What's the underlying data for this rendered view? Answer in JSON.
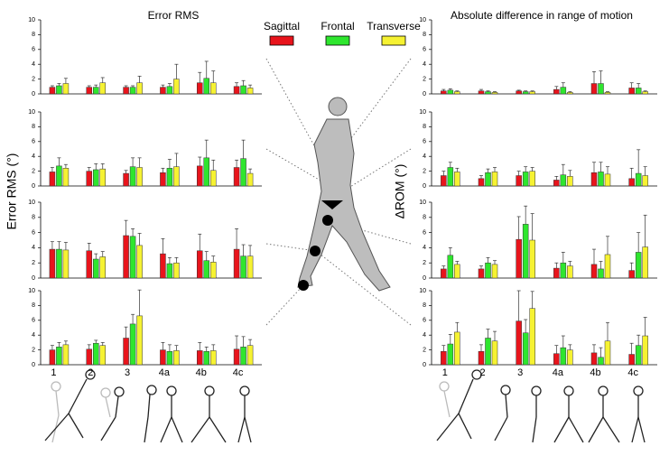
{
  "legend": [
    {
      "name": "Sagittal",
      "color": "#e8141c"
    },
    {
      "name": "Frontal",
      "color": "#2ee62e"
    },
    {
      "name": "Transverse",
      "color": "#f6f232"
    }
  ],
  "chart_data": [
    {
      "type": "bar",
      "title": "Error RMS",
      "ylabel": "Error RMS (°)",
      "ylim": [
        0,
        10
      ],
      "yticks": [
        0,
        2,
        4,
        6,
        8,
        10
      ],
      "series": [
        {
          "color": "#e8141c",
          "values": [
            0.9,
            0.9,
            0.9,
            0.9,
            1.5,
            1.0
          ],
          "errors": [
            0.2,
            0.2,
            0.2,
            0.3,
            1.4,
            0.5
          ]
        },
        {
          "color": "#2ee62e",
          "values": [
            1.1,
            0.9,
            0.9,
            1.0,
            2.1,
            1.1
          ],
          "errors": [
            0.3,
            0.3,
            0.2,
            0.4,
            2.3,
            0.7
          ]
        },
        {
          "color": "#f6f232",
          "values": [
            1.4,
            1.5,
            1.5,
            2.0,
            1.5,
            0.8
          ],
          "errors": [
            0.7,
            0.7,
            0.9,
            2.0,
            1.6,
            0.4
          ]
        }
      ]
    },
    {
      "type": "bar",
      "ylim": [
        0,
        10
      ],
      "yticks": [
        0,
        2,
        4,
        6,
        8,
        10
      ],
      "series": [
        {
          "color": "#e8141c",
          "values": [
            1.9,
            2.0,
            1.7,
            1.8,
            2.7,
            2.5
          ],
          "errors": [
            0.6,
            0.5,
            0.4,
            0.6,
            1.2,
            1.0
          ]
        },
        {
          "color": "#2ee62e",
          "values": [
            2.7,
            2.2,
            2.6,
            2.4,
            3.8,
            3.7
          ],
          "errors": [
            1.1,
            0.8,
            1.2,
            1.2,
            2.4,
            2.5
          ]
        },
        {
          "color": "#f6f232",
          "values": [
            2.4,
            2.3,
            2.5,
            2.6,
            2.1,
            1.7
          ],
          "errors": [
            0.5,
            0.7,
            1.3,
            1.8,
            1.4,
            0.6
          ]
        }
      ]
    },
    {
      "type": "bar",
      "ylim": [
        0,
        10
      ],
      "yticks": [
        0,
        2,
        4,
        6,
        8,
        10
      ],
      "series": [
        {
          "color": "#e8141c",
          "values": [
            3.8,
            3.6,
            5.6,
            3.2,
            3.6,
            3.8
          ],
          "errors": [
            1.0,
            1.0,
            2.0,
            2.0,
            2.2,
            2.7
          ]
        },
        {
          "color": "#2ee62e",
          "values": [
            3.8,
            2.5,
            5.5,
            1.9,
            2.3,
            2.9
          ],
          "errors": [
            1.0,
            0.7,
            1.0,
            0.8,
            1.2,
            1.5
          ]
        },
        {
          "color": "#f6f232",
          "values": [
            3.7,
            2.8,
            4.3,
            2.0,
            2.1,
            2.9
          ],
          "errors": [
            1.0,
            0.7,
            1.6,
            0.7,
            0.8,
            1.4
          ]
        }
      ]
    },
    {
      "type": "bar",
      "ylim": [
        0,
        10
      ],
      "yticks": [
        0,
        2,
        4,
        6,
        8,
        10
      ],
      "categories": [
        "1",
        "2",
        "3",
        "4a",
        "4b",
        "4c"
      ],
      "series": [
        {
          "color": "#e8141c",
          "values": [
            2.0,
            2.1,
            3.6,
            2.0,
            1.9,
            2.1
          ],
          "errors": [
            0.6,
            0.6,
            1.5,
            1.0,
            1.1,
            1.8
          ]
        },
        {
          "color": "#2ee62e",
          "values": [
            2.4,
            2.9,
            5.5,
            1.8,
            1.8,
            2.4
          ],
          "errors": [
            0.6,
            0.4,
            1.3,
            0.9,
            0.6,
            1.4
          ]
        },
        {
          "color": "#f6f232",
          "values": [
            2.7,
            2.6,
            6.6,
            1.9,
            1.9,
            2.6
          ],
          "errors": [
            0.5,
            0.4,
            3.5,
            0.7,
            0.8,
            0.8
          ]
        }
      ]
    },
    {
      "type": "bar",
      "title": "Absolute difference in range of motion",
      "ylabel": "ΔROM (°)",
      "ylim": [
        0,
        10
      ],
      "yticks": [
        0,
        2,
        4,
        6,
        8,
        10
      ],
      "series": [
        {
          "color": "#e8141c",
          "values": [
            0.4,
            0.4,
            0.4,
            0.6,
            1.4,
            0.8
          ],
          "errors": [
            0.2,
            0.2,
            0.1,
            0.4,
            1.6,
            0.7
          ]
        },
        {
          "color": "#2ee62e",
          "values": [
            0.5,
            0.3,
            0.3,
            0.9,
            1.4,
            0.8
          ],
          "errors": [
            0.2,
            0.1,
            0.1,
            0.6,
            1.7,
            0.6
          ]
        },
        {
          "color": "#f6f232",
          "values": [
            0.3,
            0.2,
            0.3,
            0.2,
            0.2,
            0.3
          ],
          "errors": [
            0.1,
            0.1,
            0.1,
            0.1,
            0.1,
            0.1
          ]
        }
      ]
    },
    {
      "type": "bar",
      "ylim": [
        0,
        10
      ],
      "yticks": [
        0,
        2,
        4,
        6,
        8,
        10
      ],
      "series": [
        {
          "color": "#e8141c",
          "values": [
            1.4,
            1.0,
            1.4,
            0.8,
            1.8,
            1.0
          ],
          "errors": [
            0.6,
            0.4,
            0.6,
            0.5,
            1.4,
            1.4
          ]
        },
        {
          "color": "#2ee62e",
          "values": [
            2.5,
            1.8,
            1.9,
            1.5,
            1.9,
            1.7
          ],
          "errors": [
            0.7,
            0.5,
            0.7,
            1.4,
            1.3,
            3.2
          ]
        },
        {
          "color": "#f6f232",
          "values": [
            1.9,
            1.9,
            2.0,
            1.3,
            1.6,
            1.4
          ],
          "errors": [
            0.5,
            0.6,
            0.5,
            0.8,
            1.0,
            1.2
          ]
        }
      ]
    },
    {
      "type": "bar",
      "ylim": [
        0,
        10
      ],
      "yticks": [
        0,
        2,
        4,
        6,
        8,
        10
      ],
      "series": [
        {
          "color": "#e8141c",
          "values": [
            1.2,
            1.2,
            5.1,
            1.3,
            1.8,
            1.0
          ],
          "errors": [
            0.4,
            0.4,
            3.0,
            0.7,
            2.0,
            1.0
          ]
        },
        {
          "color": "#2ee62e",
          "values": [
            3.0,
            2.0,
            7.1,
            2.0,
            1.2,
            3.4
          ],
          "errors": [
            1.0,
            0.7,
            2.4,
            1.4,
            1.0,
            2.6
          ]
        },
        {
          "color": "#f6f232",
          "values": [
            1.8,
            1.8,
            5.0,
            1.6,
            3.1,
            4.1
          ],
          "errors": [
            0.4,
            0.5,
            3.5,
            0.6,
            2.4,
            4.2
          ]
        }
      ]
    },
    {
      "type": "bar",
      "ylim": [
        0,
        10
      ],
      "yticks": [
        0,
        2,
        4,
        6,
        8,
        10
      ],
      "categories": [
        "1",
        "2",
        "3",
        "4a",
        "4b",
        "4c"
      ],
      "series": [
        {
          "color": "#e8141c",
          "values": [
            1.8,
            1.8,
            5.9,
            1.5,
            1.6,
            1.4
          ],
          "errors": [
            0.8,
            0.9,
            4.1,
            1.1,
            1.1,
            1.5
          ]
        },
        {
          "color": "#2ee62e",
          "values": [
            2.8,
            3.6,
            4.3,
            2.3,
            1.0,
            2.6
          ],
          "errors": [
            1.3,
            1.2,
            1.8,
            1.6,
            1.3,
            1.4
          ]
        },
        {
          "color": "#f6f232",
          "values": [
            4.4,
            3.2,
            7.6,
            2.0,
            3.2,
            3.9
          ],
          "errors": [
            1.3,
            1.3,
            2.3,
            0.7,
            2.5,
            2.5
          ]
        }
      ]
    }
  ]
}
